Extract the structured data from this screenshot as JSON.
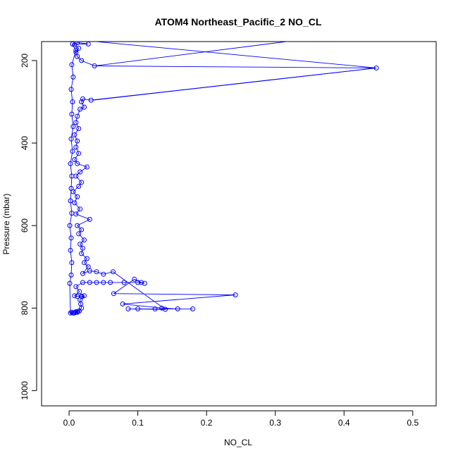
{
  "chart_data": {
    "type": "scatter",
    "title": "ATOM4 Northeast_Pacific_2 NO_CL",
    "xlabel": "NO_CL",
    "ylabel": "Pressure (mbar)",
    "xlim": [
      -0.04,
      0.534
    ],
    "ylim_reversed": [
      1037,
      154
    ],
    "y_axis_reversed": true,
    "x_ticks": [
      0.0,
      0.1,
      0.2,
      0.3,
      0.4,
      0.5
    ],
    "x_tick_labels": [
      "0.0",
      "0.1",
      "0.2",
      "0.3",
      "0.4",
      "0.5"
    ],
    "y_ticks": [
      200,
      400,
      600,
      800,
      1000
    ],
    "y_tick_labels": [
      "200",
      "400",
      "600",
      "800",
      "1000"
    ],
    "grid": false,
    "legend": "none",
    "series": [
      {
        "color": "#0000ff",
        "marker": "open-circle",
        "connected": true,
        "points": [
          [
            0.007,
            812
          ],
          [
            0.009,
            811
          ],
          [
            0.012,
            810
          ],
          [
            0.01,
            809
          ],
          [
            0.013,
            808
          ],
          [
            0.015,
            807
          ],
          [
            0.018,
            800
          ],
          [
            0.017,
            790
          ],
          [
            0.016,
            780
          ],
          [
            0.019,
            772
          ],
          [
            0.022,
            770
          ],
          [
            0.018,
            771
          ],
          [
            0.012,
            772
          ],
          [
            0.008,
            770
          ],
          [
            0.015,
            760
          ],
          [
            0.01,
            748
          ],
          [
            0.02,
            738
          ],
          [
            0.03,
            738
          ],
          [
            0.04,
            738
          ],
          [
            0.05,
            738
          ],
          [
            0.06,
            738
          ],
          [
            0.08,
            738
          ],
          [
            0.1,
            738
          ],
          [
            0.11,
            740
          ],
          [
            0.105,
            738
          ],
          [
            0.095,
            730
          ],
          [
            0.065,
            765
          ],
          [
            0.242,
            768
          ],
          [
            0.078,
            790
          ],
          [
            0.135,
            800
          ],
          [
            0.158,
            802
          ],
          [
            0.18,
            802
          ],
          [
            0.125,
            802
          ],
          [
            0.1,
            802
          ],
          [
            0.086,
            802
          ],
          [
            0.14,
            803
          ],
          [
            0.064,
            712
          ],
          [
            0.05,
            718
          ],
          [
            0.04,
            712
          ],
          [
            0.03,
            710
          ],
          [
            0.02,
            716
          ],
          [
            0.028,
            700
          ],
          [
            0.022,
            690
          ],
          [
            0.026,
            680
          ],
          [
            0.018,
            668
          ],
          [
            0.02,
            655
          ],
          [
            0.016,
            645
          ],
          [
            0.022,
            635
          ],
          [
            0.014,
            620
          ],
          [
            0.018,
            610
          ],
          [
            0.012,
            600
          ],
          [
            0.03,
            585
          ],
          [
            0.01,
            572
          ],
          [
            0.016,
            560
          ],
          [
            0.008,
            545
          ],
          [
            0.012,
            530
          ],
          [
            0.006,
            518
          ],
          [
            0.014,
            505
          ],
          [
            0.018,
            495
          ],
          [
            0.01,
            480
          ],
          [
            0.016,
            470
          ],
          [
            0.026,
            458
          ],
          [
            0.012,
            450
          ],
          [
            0.008,
            440
          ],
          [
            0.014,
            425
          ],
          [
            0.01,
            410
          ],
          [
            0.012,
            395
          ],
          [
            0.008,
            380
          ],
          [
            0.014,
            365
          ],
          [
            0.01,
            350
          ],
          [
            0.012,
            335
          ],
          [
            0.016,
            318
          ],
          [
            0.022,
            313
          ],
          [
            0.018,
            300
          ],
          [
            0.02,
            293
          ],
          [
            0.032,
            296
          ],
          [
            0.447,
            218
          ],
          [
            0.037,
            213
          ],
          [
            0.018,
            200
          ],
          [
            0.012,
            190
          ],
          [
            0.01,
            180
          ],
          [
            0.014,
            170
          ],
          [
            0.008,
            162
          ],
          [
            0.012,
            156
          ],
          [
            0.028,
            160
          ],
          [
            0.005,
            160
          ],
          [
            0.01,
            175
          ],
          [
            0.004,
            210
          ],
          [
            0.006,
            240
          ],
          [
            0.003,
            270
          ],
          [
            0.005,
            300
          ],
          [
            0.004,
            330
          ],
          [
            0.006,
            360
          ],
          [
            0.003,
            390
          ],
          [
            0.005,
            420
          ],
          [
            0.002,
            450
          ],
          [
            0.004,
            480
          ],
          [
            0.003,
            510
          ],
          [
            0.002,
            540
          ],
          [
            0.004,
            570
          ],
          [
            0.001,
            600
          ],
          [
            0.003,
            630
          ],
          [
            0.002,
            660
          ],
          [
            0.004,
            690
          ],
          [
            0.003,
            720
          ],
          [
            0.001,
            740
          ],
          [
            0.002,
            812
          ],
          [
            0.004,
            810
          ],
          [
            0.006,
            812
          ]
        ]
      }
    ],
    "extra_segments": [
      [
        [
          0.007,
          149
        ],
        [
          0.447,
          218
        ]
      ],
      [
        [
          0.447,
          218
        ],
        [
          0.035,
          296
        ]
      ],
      [
        [
          0.34,
          149
        ],
        [
          0.037,
          213
        ]
      ]
    ]
  }
}
